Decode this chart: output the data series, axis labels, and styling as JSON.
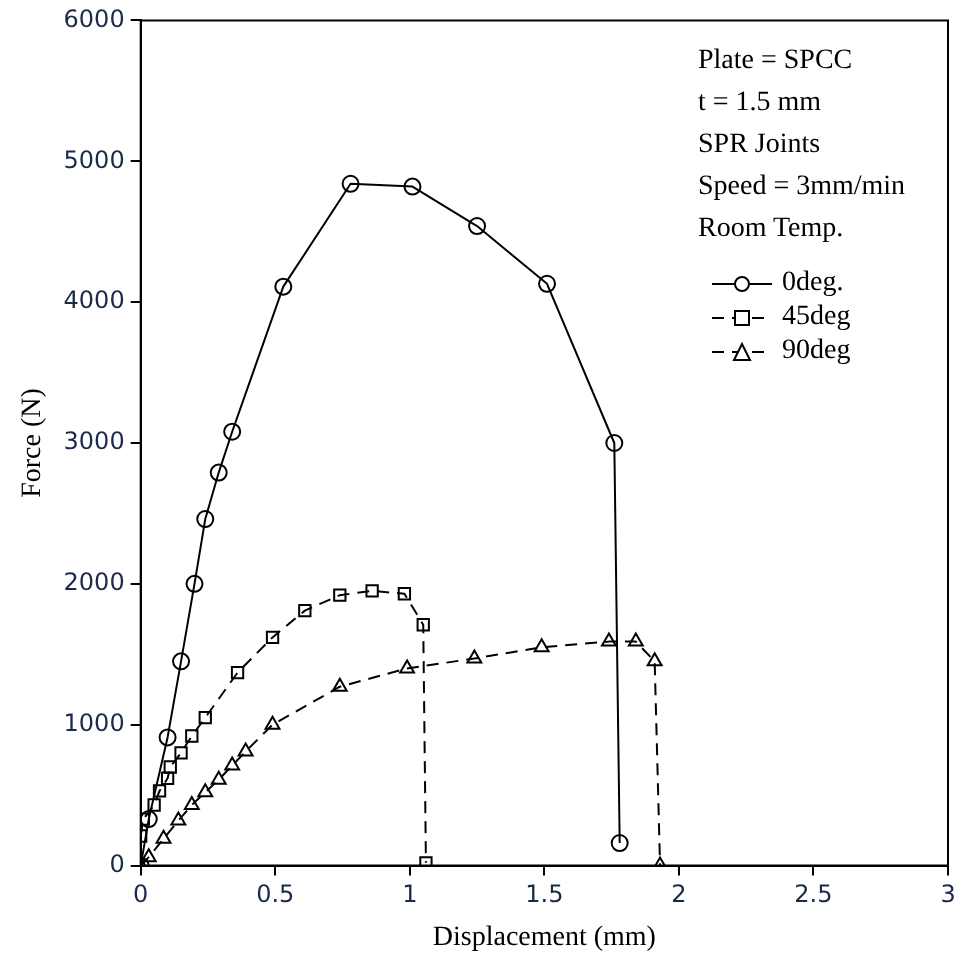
{
  "chart_data": {
    "type": "line",
    "xlabel": "Displacement (mm)",
    "ylabel": "Force (N)",
    "xlim": [
      0,
      3
    ],
    "xticks": [
      0,
      0.5,
      1,
      1.5,
      2,
      2.5,
      3
    ],
    "ylim": [
      0,
      6000
    ],
    "yticks": [
      0,
      1000,
      2000,
      3000,
      4000,
      5000,
      6000
    ],
    "grid": false,
    "legend": "top right",
    "annotations": [
      "Plate = SPCC",
      "t = 1.5 mm",
      "SPR Joints",
      "Speed = 3mm/min",
      "Room Temp."
    ],
    "series": [
      {
        "name": "0deg.",
        "color": "#000000",
        "marker": "circle",
        "line_style": "solid",
        "x": [
          0,
          0.03,
          0.1,
          0.15,
          0.2,
          0.24,
          0.29,
          0.34,
          0.53,
          0.78,
          1.01,
          1.25,
          1.51,
          1.76,
          1.78
        ],
        "values": [
          0,
          330,
          910,
          1450,
          2000,
          2460,
          2790,
          3080,
          4110,
          4840,
          4820,
          4540,
          4130,
          3000,
          160
        ]
      },
      {
        "name": "45deg",
        "color": "#000000",
        "marker": "square",
        "line_style": "dashed",
        "x": [
          0,
          0.01,
          0.05,
          0.07,
          0.1,
          0.11,
          0.15,
          0.19,
          0.24,
          0.36,
          0.49,
          0.61,
          0.74,
          0.86,
          0.98,
          1.05,
          1.06
        ],
        "values": [
          210,
          330,
          430,
          530,
          620,
          700,
          800,
          920,
          1050,
          1370,
          1620,
          1810,
          1920,
          1950,
          1930,
          1710,
          20
        ]
      },
      {
        "name": "90deg",
        "color": "#000000",
        "marker": "triangle",
        "line_style": "dashed",
        "x": [
          0,
          0.03,
          0.085,
          0.14,
          0.19,
          0.24,
          0.29,
          0.34,
          0.39,
          0.49,
          0.74,
          0.99,
          1.24,
          1.49,
          1.74,
          1.84,
          1.91,
          1.93
        ],
        "values": [
          0,
          60,
          190,
          320,
          430,
          520,
          610,
          710,
          810,
          1000,
          1270,
          1400,
          1470,
          1550,
          1590,
          1590,
          1450,
          0
        ]
      }
    ]
  }
}
